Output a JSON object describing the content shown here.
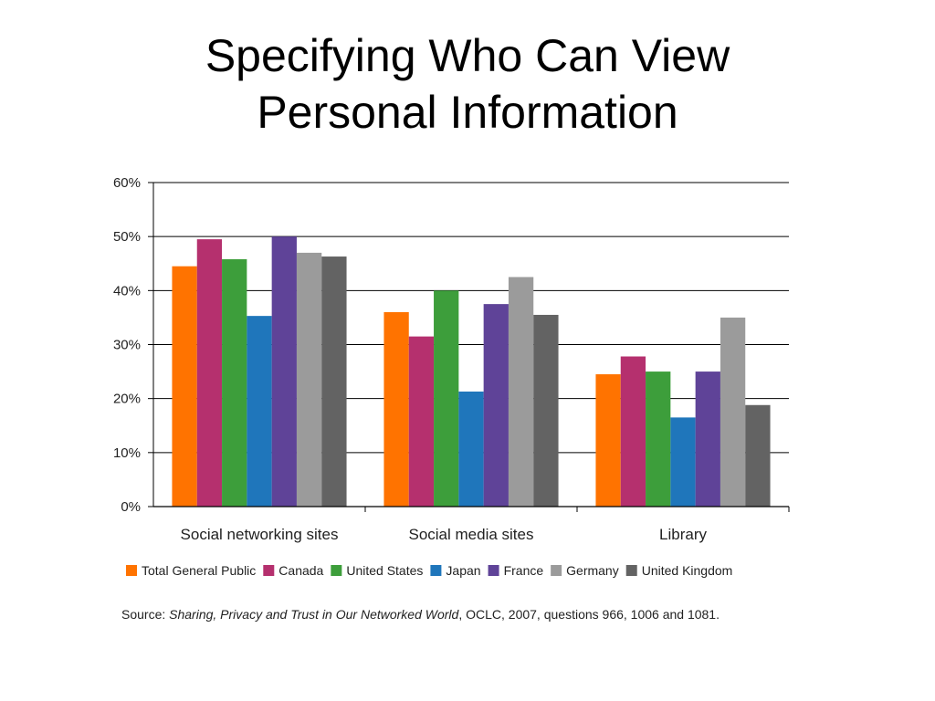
{
  "slide": {
    "title_line1": "Specifying Who Can View",
    "title_line2": "Personal Information"
  },
  "chart_data": {
    "type": "bar",
    "categories": [
      "Social networking sites",
      "Social media sites",
      "Library"
    ],
    "ylim": [
      0,
      60
    ],
    "yticks": [
      "0%",
      "10%",
      "20%",
      "30%",
      "40%",
      "50%",
      "60%"
    ],
    "grid": true,
    "legend_position": "bottom",
    "series": [
      {
        "name": "Total General Public",
        "color": "#ff7300",
        "values": [
          44.5,
          36,
          24.5
        ]
      },
      {
        "name": "Canada",
        "color": "#b5306e",
        "values": [
          49.5,
          31.5,
          27.8
        ]
      },
      {
        "name": "United States",
        "color": "#3d9e3b",
        "values": [
          45.8,
          40,
          25
        ]
      },
      {
        "name": "Japan",
        "color": "#1f76bb",
        "values": [
          35.3,
          21.3,
          16.5
        ]
      },
      {
        "name": "France",
        "color": "#5f4398",
        "values": [
          50,
          37.5,
          25
        ]
      },
      {
        "name": "Germany",
        "color": "#9b9b9b",
        "values": [
          47,
          42.5,
          35
        ]
      },
      {
        "name": "United Kingdom",
        "color": "#636363",
        "values": [
          46.3,
          35.5,
          18.8
        ]
      }
    ],
    "source": {
      "prefix": "Source: ",
      "title": "Sharing, Privacy and Trust in Our Networked World",
      "suffix": ", OCLC, 2007, questions 966, 1006 and 1081."
    }
  }
}
